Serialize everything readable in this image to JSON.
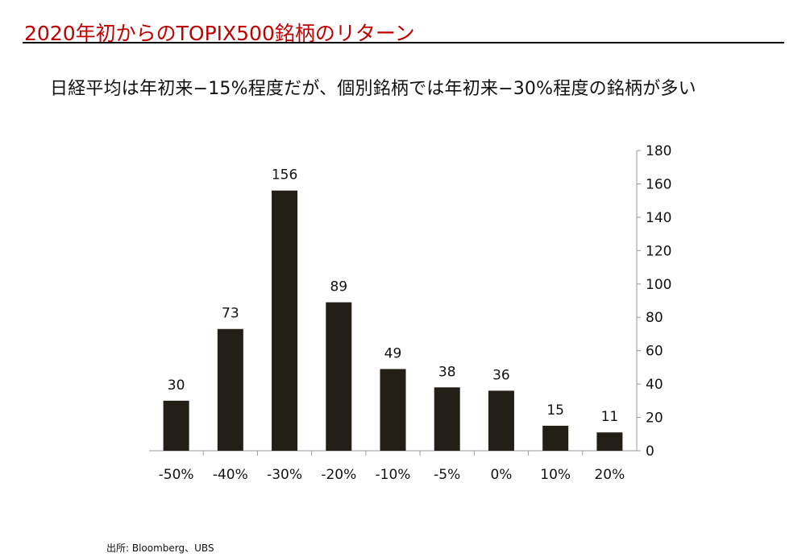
{
  "slide": {
    "title": "2020年初からのTOPIX500銘柄のリターン",
    "subtitle": "日経平均は年初来−15%程度だが、個別銘柄では年初来−30%程度の銘柄が多い",
    "source": "出所: Bloomberg、UBS"
  },
  "colors": {
    "title": "#c00000",
    "bar": "#231f16",
    "axis": "#999999",
    "text": "#111111"
  },
  "chart_data": {
    "type": "bar",
    "title": "",
    "xlabel": "",
    "ylabel": "",
    "categories": [
      "-50%",
      "-40%",
      "-30%",
      "-20%",
      "-10%",
      "-5%",
      "0%",
      "10%",
      "20%"
    ],
    "values": [
      30,
      73,
      156,
      89,
      49,
      38,
      36,
      15,
      11
    ],
    "ylim": [
      0,
      180
    ],
    "yticks": [
      0,
      20,
      40,
      60,
      80,
      100,
      120,
      140,
      160,
      180
    ],
    "y_axis_side": "right",
    "data_labels": true,
    "grid": false,
    "legend": false
  }
}
